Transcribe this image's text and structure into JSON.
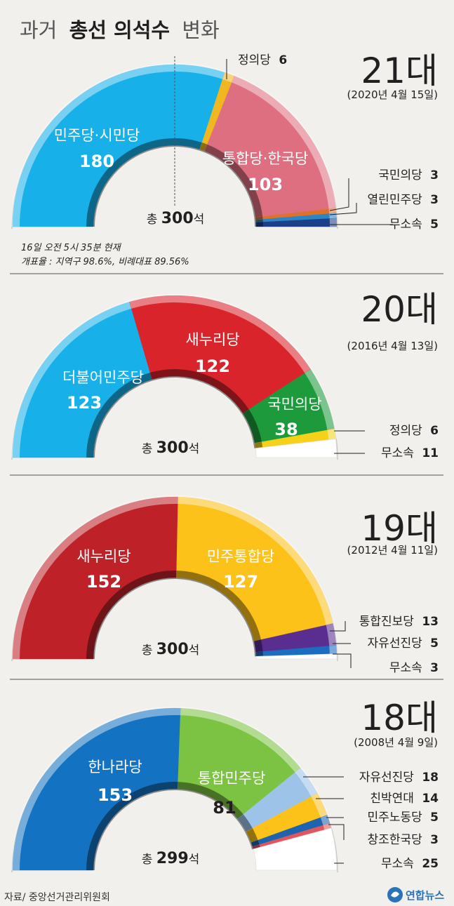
{
  "header": {
    "title_light_1": "과거",
    "title_bold": "총선 의석수",
    "title_light_2": "변화"
  },
  "footer": {
    "source": "자료/ 중앙선거관리위원회",
    "logo_text": "연합뉴스"
  },
  "chart_data": [
    {
      "type": "donut-half",
      "election": "21대",
      "date": "(2020년 4월 15일)",
      "total_label": {
        "prefix": "총",
        "value": "300",
        "unit": "석"
      },
      "note_lines": [
        "16일 오전 5시 35분 현재",
        "개표율 : 지역구 98.6%, 비례대표 89.56%"
      ],
      "majority_line": true,
      "slices": [
        {
          "name": "민주당·시민당",
          "value": 180,
          "color": "#17b0e8"
        },
        {
          "name": "정의당",
          "value": 6,
          "color": "#f0b721"
        },
        {
          "name": "통합당·한국당",
          "value": 103,
          "color": "#de6f80"
        },
        {
          "name": "국민의당",
          "value": 3,
          "color": "#e0712a"
        },
        {
          "name": "열린민주당",
          "value": 3,
          "color": "#2b86c6"
        },
        {
          "name": "무소속",
          "value": 5,
          "color": "#1c3f8a"
        }
      ]
    },
    {
      "type": "donut-half",
      "election": "20대",
      "date": "(2016년 4월 13일)",
      "total_label": {
        "prefix": "총",
        "value": "300",
        "unit": "석"
      },
      "slices": [
        {
          "name": "더불어민주당",
          "value": 123,
          "color": "#17b0e8"
        },
        {
          "name": "새누리당",
          "value": 122,
          "color": "#d9242b"
        },
        {
          "name": "국민의당",
          "value": 38,
          "color": "#1c9a3c"
        },
        {
          "name": "정의당",
          "value": 6,
          "color": "#f5d11a"
        },
        {
          "name": "무소속",
          "value": 11,
          "color": "#ffffff"
        }
      ]
    },
    {
      "type": "donut-half",
      "election": "19대",
      "date": "(2012년 4월 11일)",
      "total_label": {
        "prefix": "총",
        "value": "300",
        "unit": "석"
      },
      "slices": [
        {
          "name": "새누리당",
          "value": 152,
          "color": "#be2228"
        },
        {
          "name": "민주통합당",
          "value": 127,
          "color": "#fcc21a"
        },
        {
          "name": "통합진보당",
          "value": 13,
          "color": "#5a2d91"
        },
        {
          "name": "자유선진당",
          "value": 5,
          "color": "#1b6dc1"
        },
        {
          "name": "무소속",
          "value": 3,
          "color": "#ffffff"
        }
      ]
    },
    {
      "type": "donut-half",
      "election": "18대",
      "date": "(2008년 4월 9일)",
      "total_label": {
        "prefix": "총",
        "value": "299",
        "unit": "석"
      },
      "slices": [
        {
          "name": "한나라당",
          "value": 153,
          "color": "#1372c2"
        },
        {
          "name": "통합민주당",
          "value": 81,
          "color": "#7cc243"
        },
        {
          "name": "자유선진당",
          "value": 18,
          "color": "#9ec3e8"
        },
        {
          "name": "친박연대",
          "value": 14,
          "color": "#fcc21a"
        },
        {
          "name": "민주노동당",
          "value": 5,
          "color": "#1c64b0"
        },
        {
          "name": "창조한국당",
          "value": 3,
          "color": "#e0565e"
        },
        {
          "name": "무소속",
          "value": 25,
          "color": "#ffffff"
        }
      ]
    }
  ]
}
